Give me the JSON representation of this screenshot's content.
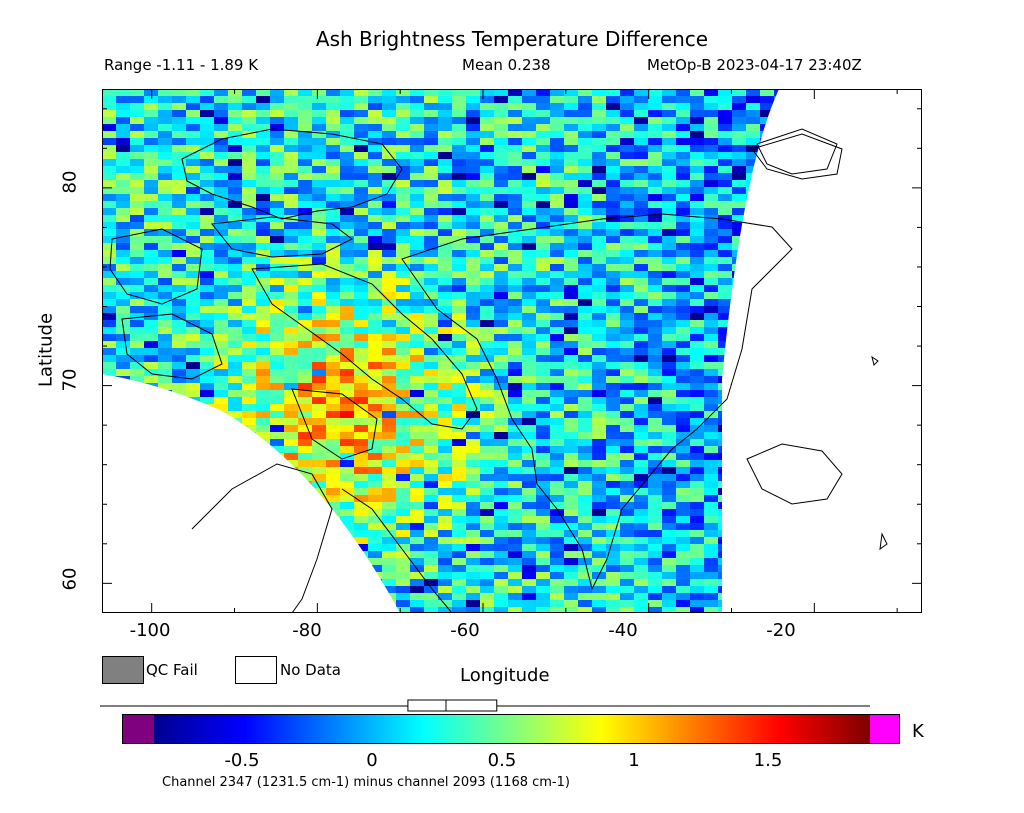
{
  "header": {
    "title": "Ash Brightness Temperature Difference",
    "range_text": "Range -1.11 - 1.89 K",
    "mean_text": "Mean 0.238",
    "satellite_text": "MetOp-B 2023-04-17 23:40Z"
  },
  "axes": {
    "x_label": "Longitude",
    "y_label": "Latitude",
    "x_ticks": [
      "-100",
      "-80",
      "-60",
      "-40",
      "-20"
    ],
    "y_ticks": [
      "80",
      "70",
      "60"
    ],
    "lon_range": [
      -106,
      -7
    ],
    "lat_range": [
      58.5,
      85
    ]
  },
  "legend": {
    "qc_fail_label": "QC Fail",
    "qc_fail_color": "#808080",
    "no_data_label": "No Data",
    "no_data_color": "#ffffff"
  },
  "colorbar": {
    "unit": "K",
    "min": -0.93,
    "max": 1.89,
    "ticks": [
      "-0.5",
      "0",
      "0.5",
      "1",
      "1.5"
    ],
    "tick_values": [
      -0.5,
      0,
      0.5,
      1,
      1.5
    ],
    "underflow_color": "#800080",
    "overflow_color": "#ff00ff",
    "palette": [
      "#00008f",
      "#0000ff",
      "#007fff",
      "#00ffff",
      "#7fff7f",
      "#ffff00",
      "#ff7f00",
      "#ff0000",
      "#7f0000"
    ]
  },
  "boxplot": {
    "whisker_min": -0.93,
    "q1": 0.07,
    "median": 0.22,
    "q3": 0.42,
    "whisker_max": 1.89
  },
  "footer": {
    "channel_text": "Channel 2347 (1231.5 cm-1) minus channel 2093 (1168 cm-1)"
  }
}
